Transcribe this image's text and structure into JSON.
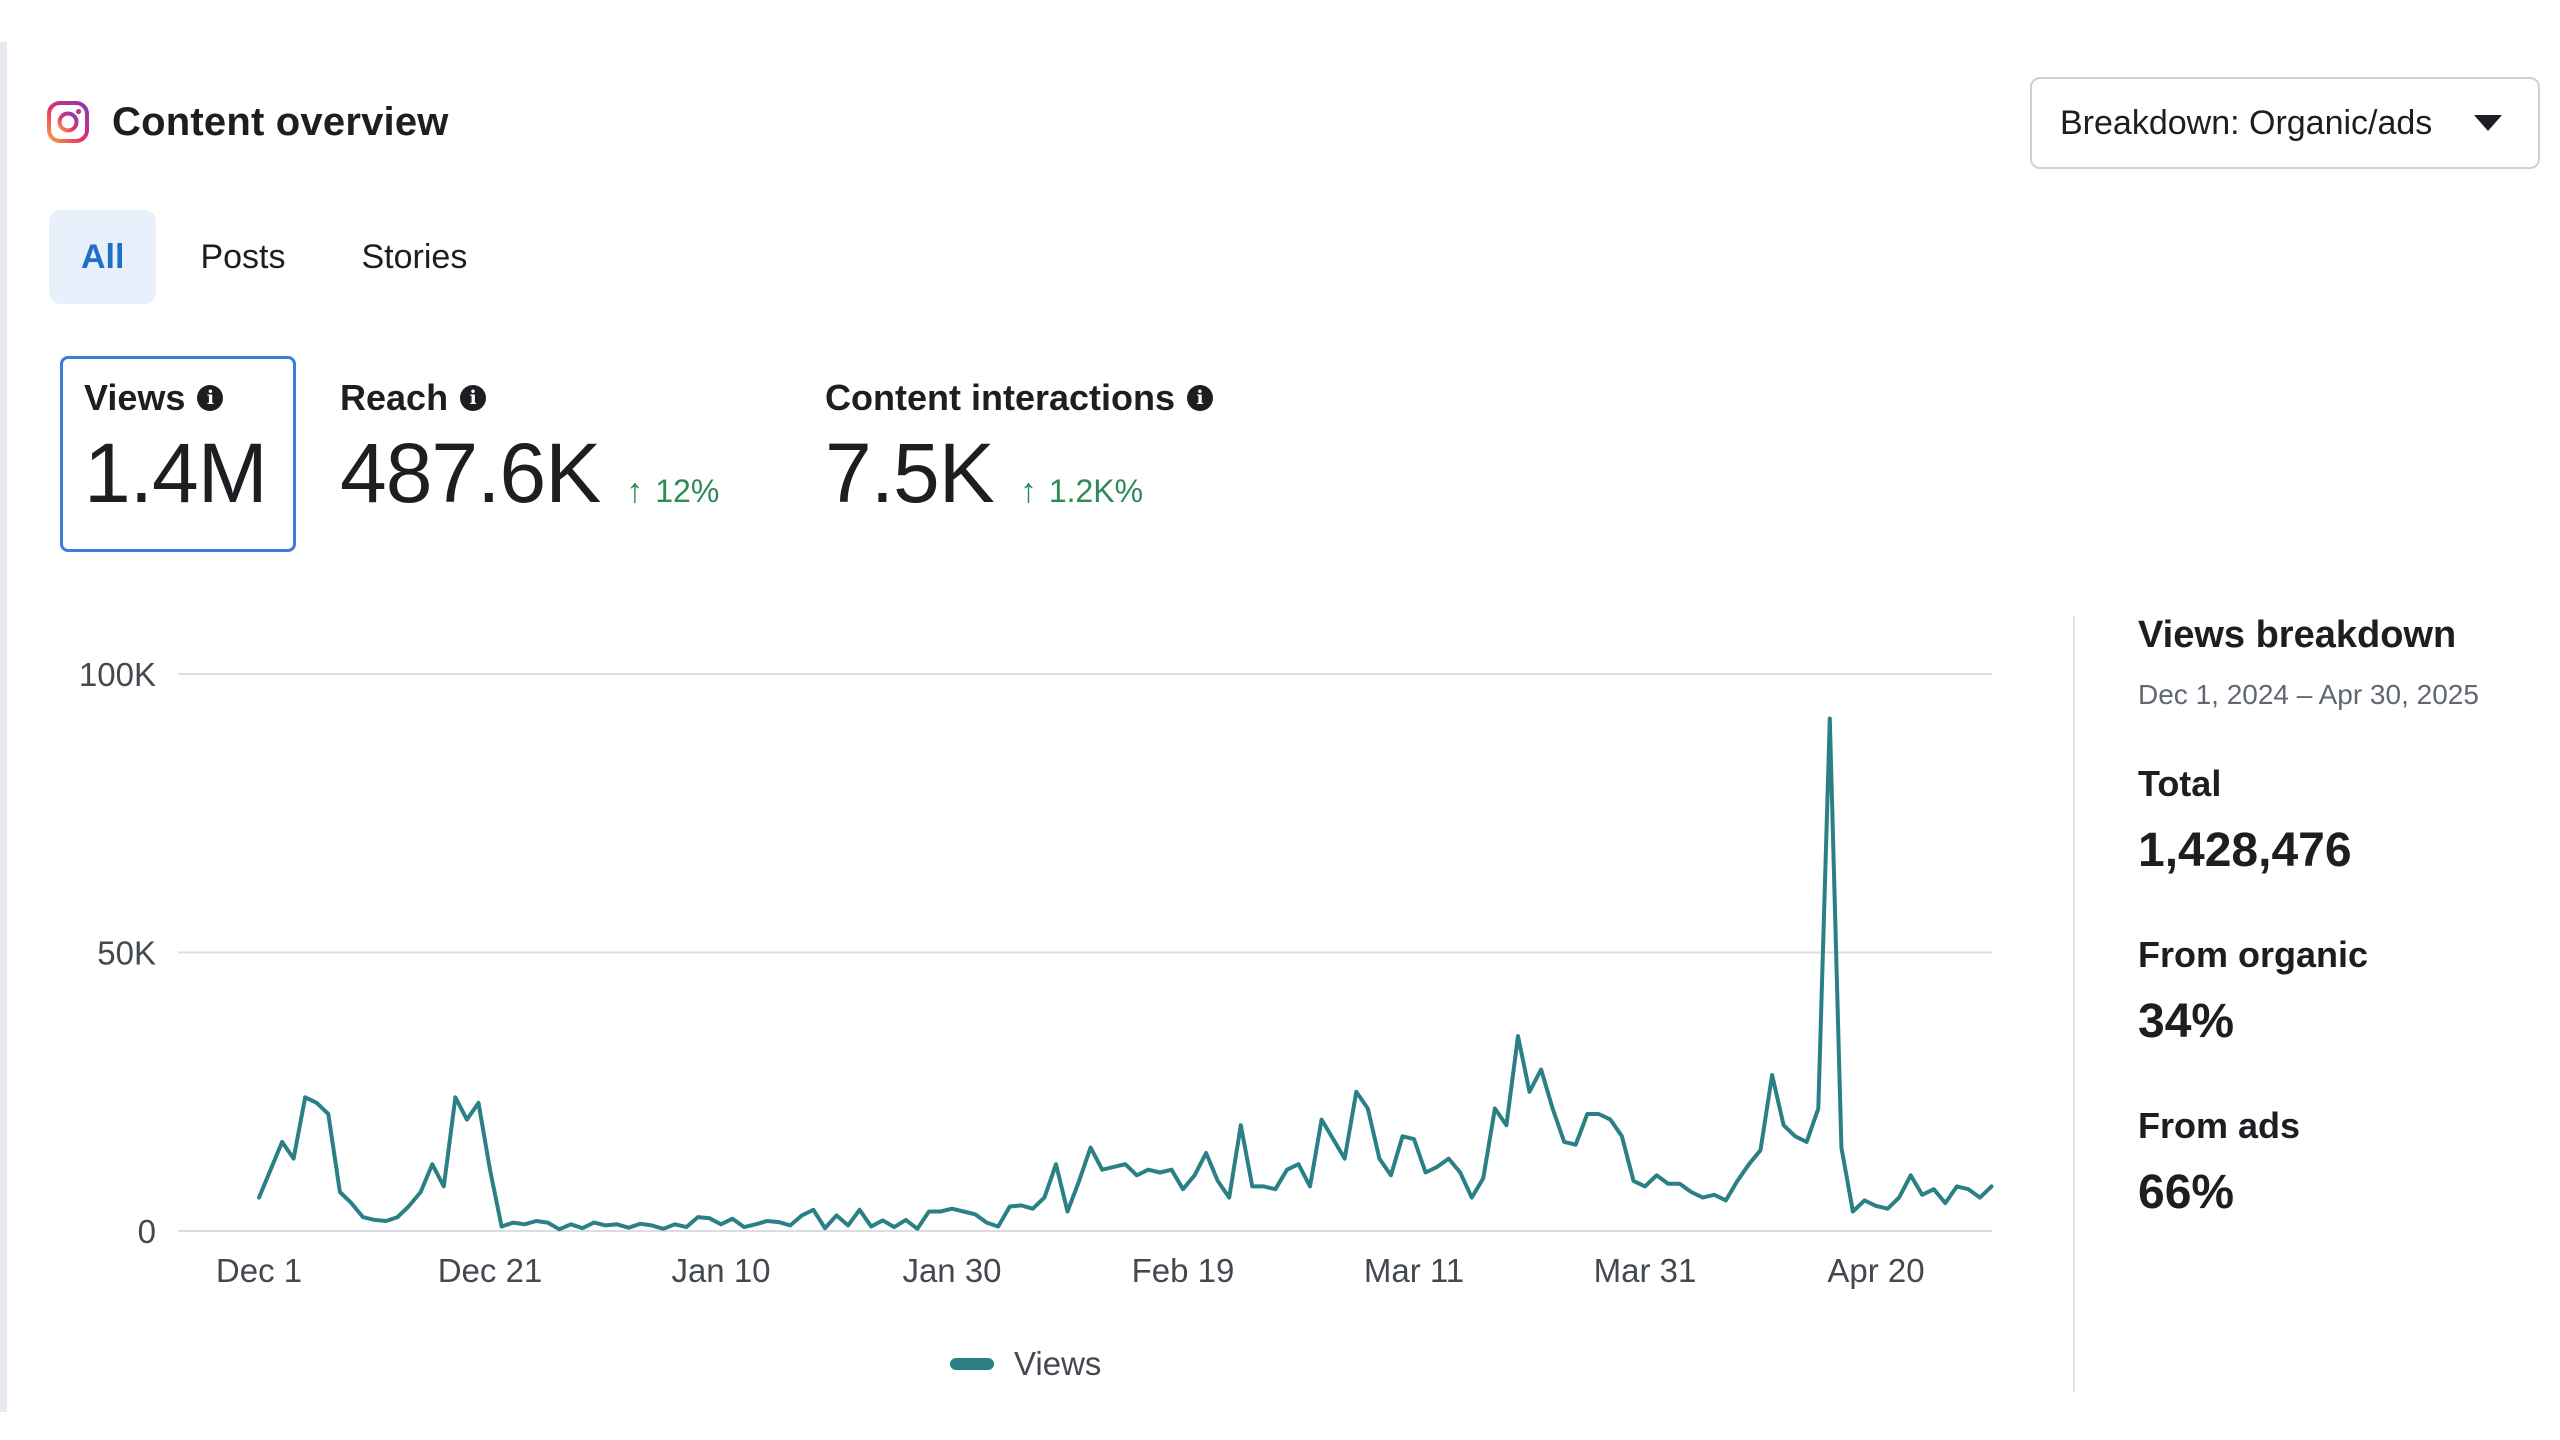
{
  "header": {
    "title": "Content overview",
    "icon": "instagram-icon",
    "breakdown_label": "Breakdown: Organic/ads"
  },
  "tabs": [
    {
      "label": "All",
      "active": true
    },
    {
      "label": "Posts",
      "active": false
    },
    {
      "label": "Stories",
      "active": false
    }
  ],
  "metrics": [
    {
      "label": "Views",
      "value": "1.4M",
      "selected": true
    },
    {
      "label": "Reach",
      "value": "487.6K",
      "delta": "12%",
      "delta_direction": "up"
    },
    {
      "label": "Content interactions",
      "value": "7.5K",
      "delta": "1.2K%",
      "delta_direction": "up"
    }
  ],
  "colors": {
    "series": "#2a8085",
    "positive": "#2e8b57",
    "accent": "#1f6fc5",
    "selected_border": "#3b7dd8"
  },
  "chart_data": {
    "type": "line",
    "y_tick_labels": [
      "0",
      "50K",
      "100K"
    ],
    "ylim": [
      0,
      100000
    ],
    "x_tick_labels": [
      "Dec 1",
      "Dec 21",
      "Jan 10",
      "Jan 30",
      "Feb 19",
      "Mar 11",
      "Mar 31",
      "Apr 20"
    ],
    "x_start": "Dec 1",
    "legend_position": "bottom",
    "grid": true,
    "series": [
      {
        "name": "Views",
        "values": [
          6000,
          11000,
          16000,
          13000,
          24000,
          23000,
          21000,
          7000,
          5000,
          2500,
          2000,
          1800,
          2500,
          4500,
          7000,
          12000,
          8000,
          24000,
          20000,
          23000,
          11000,
          800,
          1500,
          1200,
          1800,
          1500,
          300,
          1200,
          500,
          1500,
          1000,
          1200,
          600,
          1300,
          1000,
          400,
          1200,
          700,
          2500,
          2300,
          1200,
          2200,
          700,
          1200,
          1800,
          1600,
          1000,
          2800,
          3800,
          500,
          2800,
          1000,
          3800,
          800,
          1900,
          700,
          2000,
          400,
          3500,
          3500,
          4000,
          3500,
          3000,
          1500,
          800,
          4400,
          4600,
          4000,
          6000,
          12000,
          3500,
          9000,
          15000,
          11000,
          11500,
          12000,
          10000,
          11000,
          10500,
          11000,
          7500,
          10000,
          14000,
          9000,
          6000,
          19000,
          8000,
          8000,
          7500,
          11000,
          12000,
          8000,
          20000,
          16500,
          13000,
          25000,
          22000,
          13000,
          10000,
          17000,
          16500,
          10500,
          11500,
          13000,
          10500,
          6000,
          9500,
          22000,
          19000,
          35000,
          25000,
          29000,
          22000,
          16000,
          15500,
          21000,
          21000,
          20000,
          17000,
          9000,
          8000,
          10000,
          8500,
          8500,
          7000,
          6000,
          6500,
          5500,
          9000,
          12000,
          14500,
          28000,
          19000,
          17000,
          16000,
          22000,
          92000,
          15000,
          3500,
          5500,
          4500,
          4000,
          6000,
          10000,
          6500,
          7500,
          5000,
          8000,
          7500,
          6000,
          8000
        ]
      }
    ]
  },
  "breakdown": {
    "title": "Views breakdown",
    "date_range": "Dec 1, 2024 – Apr 30, 2025",
    "total_label": "Total",
    "total_value": "1,428,476",
    "organic_label": "From organic",
    "organic_value": "34%",
    "ads_label": "From ads",
    "ads_value": "66%"
  }
}
